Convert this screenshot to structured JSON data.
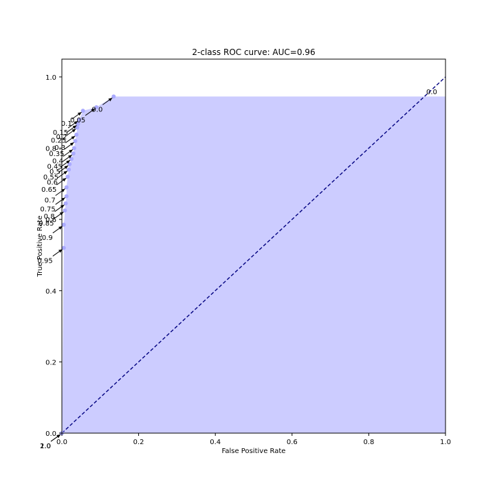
{
  "chart_data": {
    "type": "area",
    "title": "2-class ROC curve: AUC=0.96",
    "xlabel": "False Positive Rate",
    "ylabel": "True Positive Rate",
    "xlim": [
      0,
      1
    ],
    "ylim": [
      0,
      1.05
    ],
    "x_ticks": [
      "0.0",
      "0.2",
      "0.4",
      "0.6",
      "0.8",
      "1.0"
    ],
    "y_ticks": [
      "0.0",
      "0.2",
      "0.4",
      "0.6",
      "0.8",
      "1.0"
    ],
    "grid": false,
    "fill_color": "#ccccff",
    "point_color": "#aaaaff",
    "diagonal_color": "#000080",
    "points": [
      {
        "x": 0.0,
        "y": 0.0,
        "threshold": "2.0"
      },
      {
        "x": 0.0,
        "y": 0.0,
        "threshold": "1.0"
      },
      {
        "x": 0.005,
        "y": 0.52,
        "threshold": "0.95"
      },
      {
        "x": 0.005,
        "y": 0.585,
        "threshold": "0.9"
      },
      {
        "x": 0.008,
        "y": 0.625,
        "threshold": "0.85"
      },
      {
        "x": 0.01,
        "y": 0.645,
        "threshold": "0.8"
      },
      {
        "x": 0.012,
        "y": 0.665,
        "threshold": "0.75"
      },
      {
        "x": 0.012,
        "y": 0.69,
        "threshold": "0.7"
      },
      {
        "x": 0.015,
        "y": 0.72,
        "threshold": "0.65"
      },
      {
        "x": 0.018,
        "y": 0.74,
        "threshold": "0.6"
      },
      {
        "x": 0.02,
        "y": 0.755,
        "threshold": "0.55"
      },
      {
        "x": 0.025,
        "y": 0.77,
        "threshold": "0.5"
      },
      {
        "x": 0.03,
        "y": 0.785,
        "threshold": "0.45"
      },
      {
        "x": 0.032,
        "y": 0.8,
        "threshold": "0.4"
      },
      {
        "x": 0.035,
        "y": 0.82,
        "threshold": "0.35"
      },
      {
        "x": 0.038,
        "y": 0.838,
        "threshold": "0.3"
      },
      {
        "x": 0.04,
        "y": 0.858,
        "threshold": "0.25"
      },
      {
        "x": 0.042,
        "y": 0.868,
        "threshold": "0.2"
      },
      {
        "x": 0.045,
        "y": 0.88,
        "threshold": "0.15"
      },
      {
        "x": 0.055,
        "y": 0.905,
        "threshold": "0.1"
      },
      {
        "x": 0.09,
        "y": 0.915,
        "threshold": "0.05"
      },
      {
        "x": 0.135,
        "y": 0.945,
        "threshold": "0.0"
      }
    ],
    "last_point_label": {
      "x": 1.0,
      "y": 1.0,
      "threshold": "0.0"
    }
  }
}
